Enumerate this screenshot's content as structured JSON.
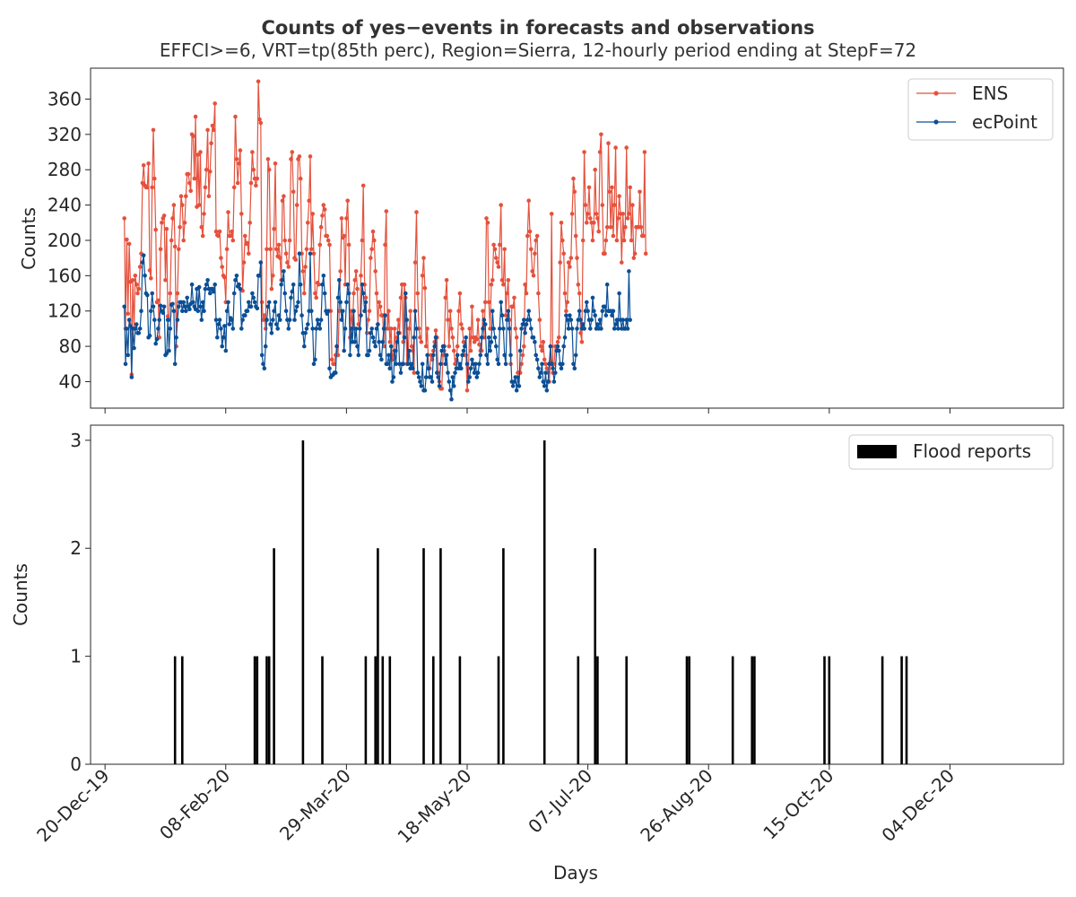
{
  "title_main": "Counts of yes−events in forecasts and observations",
  "title_sub": "EFFCI>=6, VRT=tp(85th perc), Region=Sierra, 12-hourly period ending at StepF=72",
  "colors": {
    "ens": "#e5513c",
    "ecpoint": "#0b4f96",
    "flood": "#000000"
  },
  "chart_data": [
    {
      "type": "line",
      "ylabel": "Counts",
      "xlabel": "",
      "ylim": [
        10,
        395
      ],
      "yticks": [
        40,
        80,
        120,
        160,
        200,
        240,
        280,
        320,
        360
      ],
      "x_start": "2019-12-28",
      "x_step_days": 0.5,
      "legend": "top-right",
      "series": [
        {
          "name": "ENS",
          "values": [
            225,
            100,
            201,
            117,
            196,
            153,
            48,
            155,
            100,
            160,
            150,
            140,
            145,
            170,
            185,
            265,
            285,
            262,
            260,
            260,
            287,
            166,
            157,
            260,
            325,
            270,
            212,
            130,
            132,
            90,
            190,
            220,
            225,
            228,
            155,
            213,
            114,
            110,
            140,
            200,
            225,
            240,
            193,
            80,
            140,
            190,
            215,
            250,
            240,
            200,
            220,
            250,
            275,
            275,
            265,
            256,
            320,
            318,
            270,
            340,
            238,
            297,
            240,
            300,
            215,
            205,
            230,
            260,
            280,
            325,
            250,
            278,
            310,
            330,
            325,
            355,
            210,
            206,
            205,
            210,
            180,
            170,
            160,
            158,
            130,
            190,
            232,
            205,
            205,
            210,
            200,
            260,
            340,
            292,
            265,
            287,
            302,
            230,
            143,
            175,
            205,
            196,
            197,
            185,
            220,
            265,
            300,
            280,
            270,
            262,
            270,
            380,
            337,
            333,
            130,
            110,
            115,
            100,
            190,
            292,
            280,
            190,
            145,
            160,
            213,
            287,
            190,
            182,
            195,
            180,
            155,
            245,
            250,
            200,
            185,
            175,
            170,
            200,
            292,
            300,
            255,
            180,
            178,
            240,
            292,
            295,
            270,
            185,
            165,
            140,
            170,
            190,
            220,
            245,
            295,
            190,
            230,
            185,
            140,
            135,
            152,
            150,
            195,
            215,
            228,
            240,
            235,
            205,
            205,
            200,
            195,
            120,
            65,
            60,
            60,
            70,
            80,
            70,
            120,
            165,
            225,
            203,
            205,
            150,
            225,
            245,
            195,
            90,
            120,
            100,
            140,
            155,
            165,
            145,
            105,
            100,
            160,
            200,
            262,
            150,
            135,
            95,
            110,
            120,
            180,
            190,
            210,
            200,
            165,
            140,
            105,
            130,
            125,
            115,
            115,
            80,
            195,
            233,
            100,
            120,
            85,
            100,
            65,
            70,
            100,
            75,
            90,
            110,
            95,
            135,
            150,
            85,
            150,
            135,
            60,
            70,
            100,
            120,
            80,
            75,
            50,
            175,
            232,
            140,
            100,
            90,
            85,
            160,
            180,
            146,
            80,
            100,
            55,
            55,
            70,
            65,
            75,
            85,
            98,
            90,
            50,
            40,
            32,
            32,
            70,
            75,
            135,
            155,
            110,
            80,
            120,
            100,
            90,
            75,
            60,
            65,
            80,
            120,
            140,
            105,
            100,
            85,
            70,
            70,
            30,
            45,
            100,
            75,
            125,
            90,
            85,
            90,
            88,
            110,
            82,
            75,
            75,
            120,
            90,
            130,
            225,
            220,
            130,
            100,
            150,
            155,
            195,
            190,
            180,
            175,
            170,
            195,
            240,
            155,
            150,
            190,
            115,
            140,
            155,
            110,
            60,
            125,
            125,
            135,
            100,
            90,
            50,
            50,
            50,
            60,
            70,
            80,
            150,
            140,
            205,
            245,
            210,
            190,
            165,
            160,
            185,
            200,
            205,
            140,
            110,
            80,
            75,
            85,
            65,
            60,
            55,
            50,
            40,
            62,
            230,
            50,
            60,
            80,
            75,
            85,
            90,
            175,
            220,
            200,
            185,
            140,
            120,
            130,
            175,
            170,
            180,
            230,
            270,
            255,
            205,
            180,
            150,
            140,
            95,
            85,
            200,
            300,
            240,
            220,
            230,
            260,
            225,
            220,
            200,
            220,
            280,
            230,
            225,
            210,
            300,
            320,
            240,
            185,
            185,
            200,
            215,
            310,
            255,
            215,
            260,
            205,
            240,
            305,
            200,
            225,
            250,
            230,
            175,
            230,
            200,
            215,
            305,
            225,
            230,
            260,
            200,
            240,
            180,
            185,
            215,
            215,
            215,
            255,
            215,
            205,
            205,
            300,
            185
          ]
        },
        {
          "name": "ecPoint",
          "values": [
            125,
            60,
            100,
            70,
            110,
            103,
            45,
            100,
            78,
            100,
            105,
            95,
            95,
            100,
            120,
            175,
            183,
            160,
            140,
            138,
            90,
            92,
            120,
            140,
            125,
            110,
            83,
            88,
            100,
            110,
            126,
            120,
            118,
            125,
            70,
            72,
            110,
            75,
            100,
            127,
            128,
            120,
            60,
            90,
            110,
            125,
            130,
            130,
            120,
            130,
            125,
            120,
            135,
            125,
            122,
            128,
            150,
            130,
            125,
            122,
            145,
            120,
            147,
            125,
            110,
            130,
            120,
            145,
            150,
            155,
            145,
            140,
            145,
            145,
            142,
            150,
            110,
            90,
            105,
            110,
            100,
            80,
            90,
            103,
            75,
            120,
            130,
            105,
            112,
            110,
            100,
            140,
            155,
            160,
            148,
            150,
            145,
            100,
            110,
            115,
            115,
            120,
            120,
            130,
            125,
            125,
            140,
            135,
            130,
            125,
            123,
            160,
            160,
            175,
            70,
            60,
            55,
            80,
            110,
            125,
            130,
            105,
            95,
            110,
            120,
            130,
            105,
            100,
            115,
            110,
            150,
            155,
            165,
            140,
            120,
            110,
            100,
            110,
            135,
            142,
            150,
            110,
            120,
            125,
            130,
            185,
            150,
            115,
            95,
            80,
            95,
            100,
            105,
            120,
            185,
            120,
            100,
            60,
            65,
            100,
            110,
            105,
            100,
            110,
            150,
            160,
            140,
            120,
            117,
            120,
            55,
            45,
            47,
            48,
            50,
            50,
            80,
            135,
            155,
            130,
            110,
            120,
            75,
            100,
            130,
            150,
            140,
            70,
            100,
            85,
            120,
            85,
            100,
            80,
            70,
            100,
            115,
            150,
            140,
            120,
            130,
            70,
            70,
            75,
            95,
            100,
            90,
            85,
            80,
            100,
            105,
            85,
            70,
            65,
            85,
            100,
            115,
            60,
            60,
            70,
            55,
            80,
            40,
            45,
            75,
            60,
            85,
            95,
            60,
            50,
            60,
            60,
            90,
            140,
            110,
            60,
            75,
            55,
            60,
            55,
            90,
            120,
            100,
            50,
            45,
            40,
            35,
            60,
            30,
            30,
            45,
            70,
            55,
            45,
            45,
            40,
            70,
            80,
            90,
            50,
            45,
            35,
            60,
            75,
            80,
            80,
            60,
            70,
            50,
            40,
            30,
            20,
            45,
            35,
            50,
            55,
            70,
            55,
            60,
            55,
            70,
            75,
            80,
            90,
            60,
            40,
            45,
            55,
            65,
            60,
            50,
            60,
            45,
            50,
            60,
            70,
            90,
            100,
            110,
            105,
            70,
            60,
            90,
            75,
            85,
            120,
            100,
            90,
            80,
            65,
            60,
            100,
            130,
            115,
            100,
            70,
            60,
            110,
            120,
            100,
            70,
            40,
            35,
            40,
            45,
            30,
            45,
            35,
            75,
            100,
            105,
            110,
            95,
            105,
            110,
            120,
            110,
            100,
            90,
            90,
            85,
            70,
            65,
            55,
            45,
            50,
            60,
            40,
            35,
            50,
            30,
            40,
            60,
            80,
            60,
            55,
            40,
            50,
            75,
            80,
            75,
            60,
            55,
            60,
            80,
            90,
            115,
            110,
            100,
            115,
            110,
            100,
            60,
            55,
            70,
            100,
            110,
            120,
            110,
            100,
            105,
            100,
            120,
            130,
            120,
            110,
            100,
            110,
            135,
            120,
            115,
            100,
            105,
            100,
            110,
            100,
            120,
            125,
            125,
            115,
            150,
            120,
            120,
            120,
            115,
            120,
            100,
            105,
            110,
            100,
            140,
            110,
            100,
            110,
            100,
            100,
            110,
            100,
            165,
            110
          ]
        }
      ]
    },
    {
      "type": "bar",
      "xlabel": "Days",
      "ylabel": "Counts",
      "ylim": [
        0,
        3.14
      ],
      "yticks": [
        0,
        1,
        2,
        3
      ],
      "legend": "top-right",
      "x_range": [
        "2019-12-14",
        "2021-01-20"
      ],
      "xtick_labels": [
        "20-Dec-19",
        "08-Feb-20",
        "29-Mar-20",
        "18-May-20",
        "07-Jul-20",
        "26-Aug-20",
        "15-Oct-20",
        "04-Dec-20"
      ],
      "xtick_dates": [
        "2019-12-20",
        "2020-02-08",
        "2020-03-29",
        "2020-05-18",
        "2020-07-07",
        "2020-08-26",
        "2020-10-15",
        "2020-12-04"
      ],
      "series": [
        {
          "name": "Flood reports",
          "dates": [
            "2020-01-18",
            "2020-01-21",
            "2020-02-20",
            "2020-02-21",
            "2020-02-25",
            "2020-02-26",
            "2020-02-28",
            "2020-03-11",
            "2020-03-19",
            "2020-04-06",
            "2020-04-10",
            "2020-04-11",
            "2020-04-13",
            "2020-04-16",
            "2020-04-30",
            "2020-05-04",
            "2020-05-07",
            "2020-05-15",
            "2020-05-31",
            "2020-06-02",
            "2020-06-19",
            "2020-07-03",
            "2020-07-10",
            "2020-07-11",
            "2020-07-23",
            "2020-08-17",
            "2020-08-18",
            "2020-09-05",
            "2020-09-13",
            "2020-09-14",
            "2020-10-13",
            "2020-10-15",
            "2020-11-06",
            "2020-11-14",
            "2020-11-16"
          ],
          "values": [
            1,
            1,
            1,
            1,
            1,
            1,
            2,
            3,
            1,
            1,
            1,
            2,
            1,
            1,
            2,
            1,
            2,
            1,
            1,
            2,
            3,
            1,
            2,
            1,
            1,
            1,
            1,
            1,
            1,
            1,
            1,
            1,
            1,
            1,
            1
          ]
        }
      ]
    }
  ]
}
